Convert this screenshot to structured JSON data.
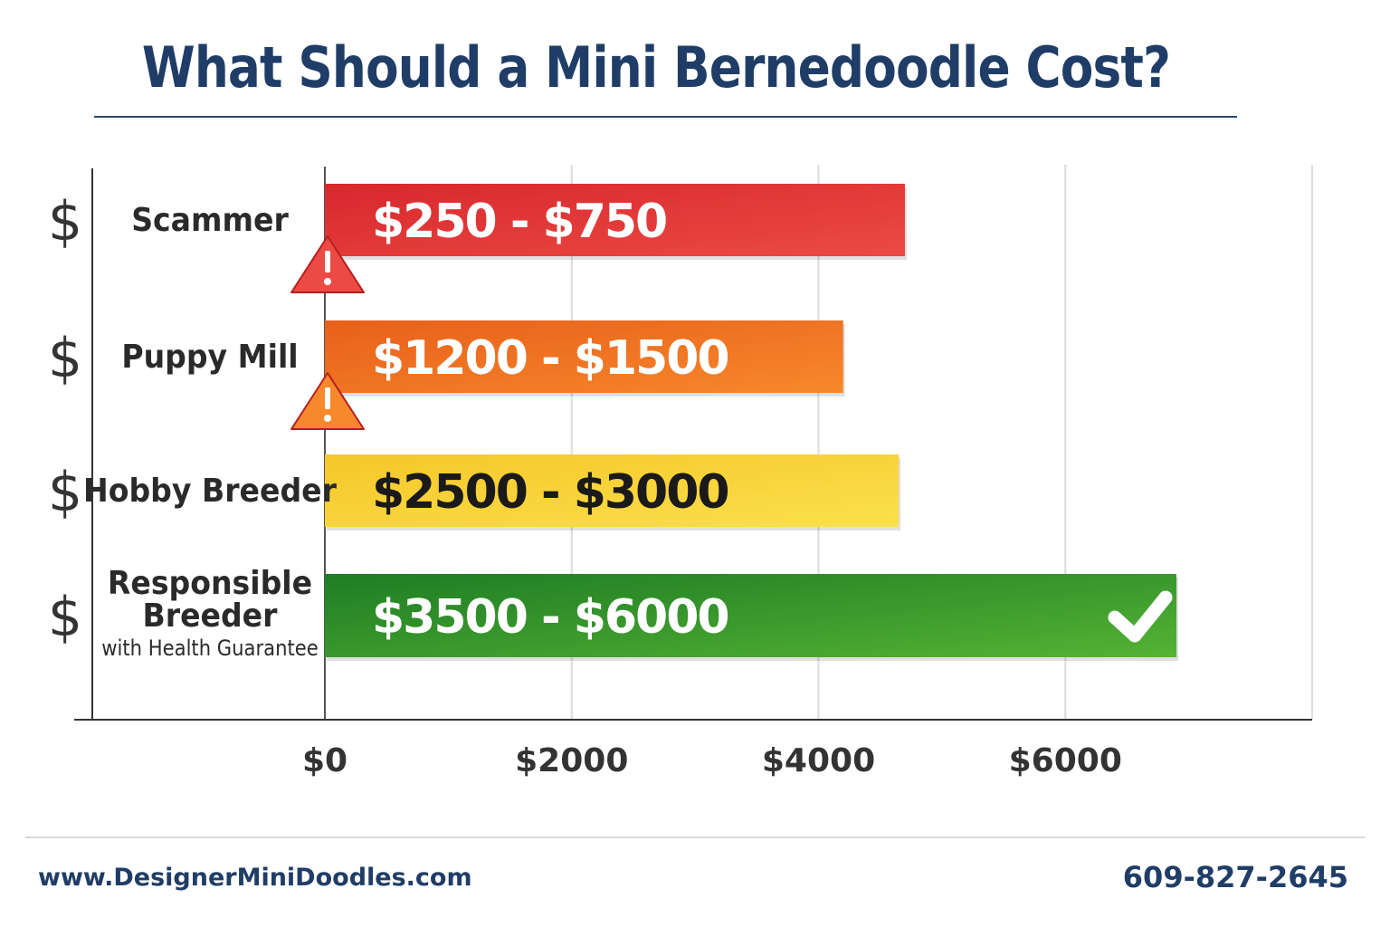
{
  "title": "What Should a Mini Bernedoodle Cost?",
  "chart_data": {
    "type": "bar",
    "orientation": "horizontal",
    "title": "What Should a Mini Bernedoodle Cost?",
    "xlim": [
      0,
      8000
    ],
    "x_ticks": [
      0,
      2000,
      4000,
      6000
    ],
    "x_tick_labels": [
      "$0",
      "$2000",
      "$4000",
      "$6000"
    ],
    "grid": true,
    "categories": [
      {
        "label": [
          "Scammer"
        ],
        "sublabel": "",
        "icon": "dollar-sign",
        "value_label": "$250 - $750",
        "value": 4700,
        "color": "#d8282e",
        "color_light": "#ec4a44",
        "label_color": "#ffffff",
        "warning": true,
        "check": false
      },
      {
        "label": [
          "Puppy Mill"
        ],
        "sublabel": "",
        "icon": "dollar-sign",
        "value_label": "$1200 - $1500",
        "value": 4200,
        "color": "#e8601a",
        "color_light": "#f7882c",
        "label_color": "#ffffff",
        "warning": true,
        "check": false
      },
      {
        "label": [
          "Hobby Breeder"
        ],
        "sublabel": "",
        "icon": "dollar-sign",
        "value_label": "$2500 - $3000",
        "value": 4650,
        "color": "#f5c72a",
        "color_light": "#fbe04c",
        "label_color": "#1a1a1a",
        "warning": false,
        "check": false
      },
      {
        "label": [
          "Responsible",
          "Breeder"
        ],
        "sublabel": "with Health Guarantee",
        "icon": "dollar-sign",
        "value_label": "$3500 - $6000",
        "value": 6900,
        "color": "#1e7d24",
        "color_light": "#55b234",
        "label_color": "#ffffff",
        "warning": false,
        "check": true
      }
    ]
  },
  "footer": {
    "website": "www.DesignerMiniDoodles.com",
    "phone": "609-827-2645"
  }
}
